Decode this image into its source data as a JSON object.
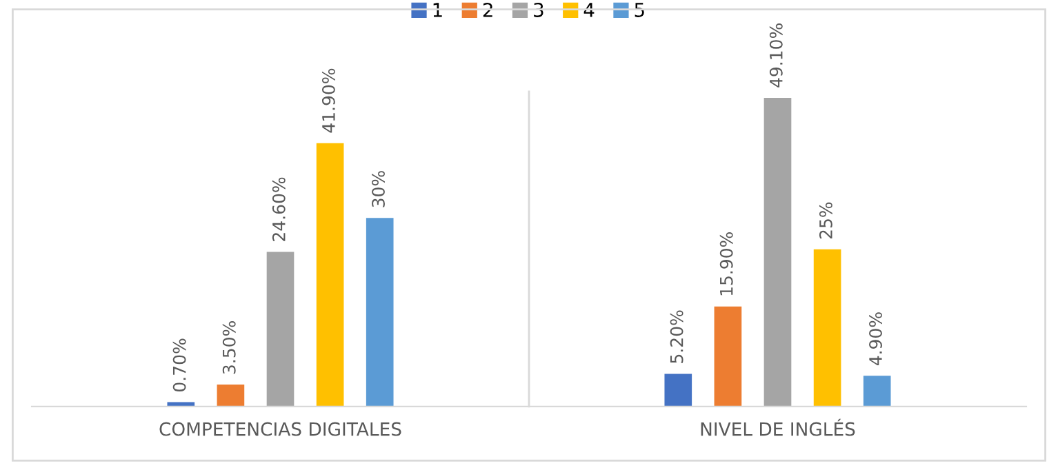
{
  "chart_data": {
    "type": "bar",
    "categories": [
      "COMPETENCIAS DIGITALES",
      "NIVEL DE INGLÉS"
    ],
    "series": [
      {
        "name": "1",
        "color": "#4472c4",
        "values": [
          0.7,
          5.2
        ],
        "value_labels": [
          "0.70%",
          "5.20%"
        ]
      },
      {
        "name": "2",
        "color": "#ed7d31",
        "values": [
          3.5,
          15.9
        ],
        "value_labels": [
          "3.50%",
          "15.90%"
        ]
      },
      {
        "name": "3",
        "color": "#a5a5a5",
        "values": [
          24.6,
          49.1
        ],
        "value_labels": [
          "24.60%",
          "49.10%"
        ]
      },
      {
        "name": "4",
        "color": "#ffc000",
        "values": [
          41.9,
          25
        ],
        "value_labels": [
          "41.90%",
          "25%"
        ]
      },
      {
        "name": "5",
        "color": "#5b9bd5",
        "values": [
          30,
          4.9
        ],
        "value_labels": [
          "30%",
          "4.90%"
        ]
      }
    ],
    "legend": "top",
    "grid": false
  }
}
